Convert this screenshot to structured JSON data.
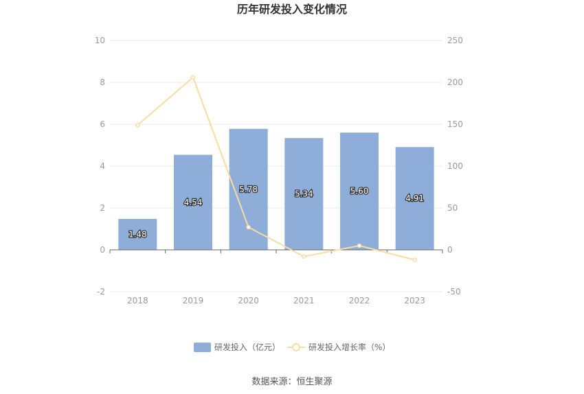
{
  "chart_data": {
    "type": "bar",
    "title": "历年研发投入变化情况",
    "categories": [
      "2018",
      "2019",
      "2020",
      "2021",
      "2022",
      "2023"
    ],
    "series": [
      {
        "name": "研发投入（亿元）",
        "type": "bar",
        "axis": "left",
        "values": [
          1.48,
          4.54,
          5.78,
          5.34,
          5.6,
          4.91
        ],
        "labels": [
          "1.48",
          "4.54",
          "5.78",
          "5.34",
          "5.60",
          "4.91"
        ]
      },
      {
        "name": "研发投入增长率（%）",
        "type": "line",
        "axis": "right",
        "values": [
          149,
          206,
          27,
          -8,
          5,
          -12
        ]
      }
    ],
    "y_left": {
      "min": -2,
      "max": 10,
      "ticks": [
        "-2",
        "0",
        "2",
        "4",
        "6",
        "8",
        "10"
      ]
    },
    "y_right": {
      "min": -50,
      "max": 250,
      "ticks": [
        "-50",
        "0",
        "50",
        "100",
        "150",
        "200",
        "250"
      ]
    },
    "grid": true,
    "legend_position": "bottom",
    "colors": {
      "bar": "#8eadd9",
      "line": "#fadba0",
      "grid": "#e8e8e8",
      "axis": "#666666"
    }
  },
  "source": "数据来源：恒生聚源"
}
